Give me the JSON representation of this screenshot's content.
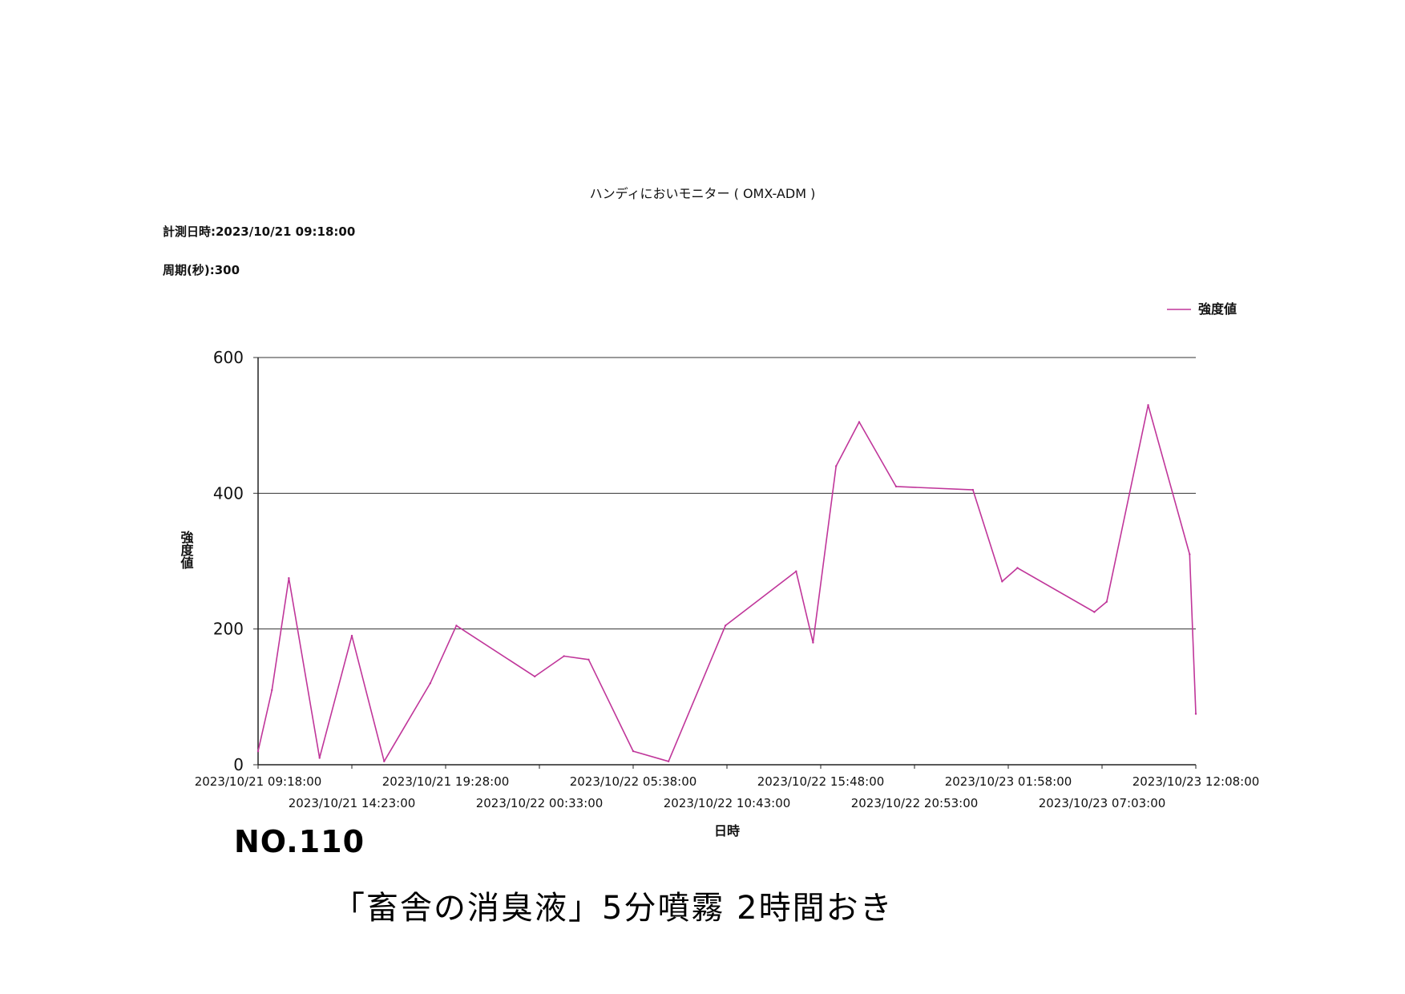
{
  "header": {
    "title": "ハンディにおいモニター ( OMX-ADM )",
    "measure_datetime": "計測日時:2023/10/21 09:18:00",
    "period": "周期(秒):300"
  },
  "handwritten": {
    "number": "NO.110",
    "memo": "「畜舎の消臭液」5分噴霧 2時間おき"
  },
  "colors": {
    "series": "#c0369a",
    "grid": "#333333"
  },
  "chart_data": {
    "type": "line",
    "title": "ハンディにおいモニター ( OMX-ADM )",
    "xlabel": "日時",
    "ylabel": "強度値",
    "ylim": [
      0,
      600
    ],
    "yticks": [
      0,
      200,
      400,
      600
    ],
    "xlim": [
      "2023/10/21 09:18:00",
      "2023/10/23 12:08:00"
    ],
    "xticks": [
      "2023/10/21 09:18:00",
      "2023/10/21 14:23:00",
      "2023/10/21 19:28:00",
      "2023/10/22 00:33:00",
      "2023/10/22 05:38:00",
      "2023/10/22 10:43:00",
      "2023/10/22 15:48:00",
      "2023/10/22 20:53:00",
      "2023/10/23 01:58:00",
      "2023/10/23 07:03:00",
      "2023/10/23 12:08:00"
    ],
    "grid": true,
    "legend": "top-right",
    "series": [
      {
        "name": "強度値",
        "x": [
          "2023/10/21 09:18:00",
          "2023/10/21 10:03:00",
          "2023/10/21 10:58:00",
          "2023/10/21 12:38:00",
          "2023/10/21 14:23:00",
          "2023/10/21 16:08:00",
          "2023/10/21 18:38:00",
          "2023/10/21 20:03:00",
          "2023/10/22 00:18:00",
          "2023/10/22 01:53:00",
          "2023/10/22 03:13:00",
          "2023/10/22 05:38:00",
          "2023/10/22 07:33:00",
          "2023/10/22 10:38:00",
          "2023/10/22 14:28:00",
          "2023/10/22 15:23:00",
          "2023/10/22 16:38:00",
          "2023/10/22 17:53:00",
          "2023/10/22 19:53:00",
          "2023/10/23 00:03:00",
          "2023/10/23 01:38:00",
          "2023/10/23 02:28:00",
          "2023/10/23 06:38:00",
          "2023/10/23 07:18:00",
          "2023/10/23 09:33:00",
          "2023/10/23 11:48:00",
          "2023/10/23 12:08:00"
        ],
        "values": [
          20,
          110,
          275,
          10,
          190,
          5,
          120,
          205,
          130,
          160,
          155,
          20,
          5,
          205,
          285,
          180,
          440,
          505,
          410,
          405,
          270,
          290,
          225,
          240,
          530,
          310,
          75
        ]
      }
    ]
  }
}
